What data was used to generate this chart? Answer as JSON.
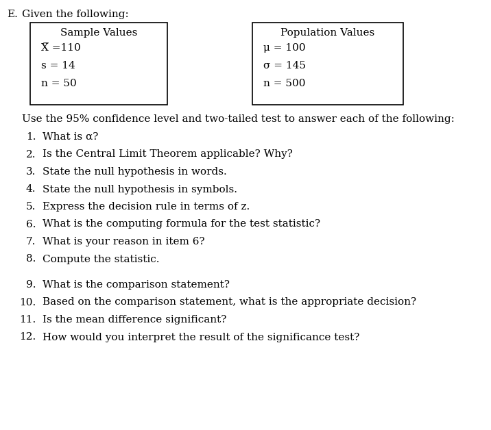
{
  "label_E": "E.",
  "header": "Given the following:",
  "box1_title": "Sample Values",
  "box1_lines": [
    "X̅ =110",
    "s = 14",
    "n = 50"
  ],
  "box2_title": "Population Values",
  "box2_lines": [
    "μ = 100",
    "σ = 145",
    "n = 500"
  ],
  "instruction": "Use the 95% confidence level and two-tailed test to answer each of the following:",
  "questions": [
    "What is α?",
    "Is the Central Limit Theorem applicable? Why?",
    "State the null hypothesis in words.",
    "State the null hypothesis in symbols.",
    "Express the decision rule in terms of z.",
    "What is the computing formula for the test statistic?",
    "What is your reason in item 6?",
    "Compute the statistic.",
    "What is the comparison statement?",
    "Based on the comparison statement, what is the appropriate decision?",
    "Is the mean difference significant?",
    "How would you interpret the result of the significance test?"
  ],
  "bg_color": "#ffffff",
  "text_color": "#000000",
  "font_size": 11.0
}
